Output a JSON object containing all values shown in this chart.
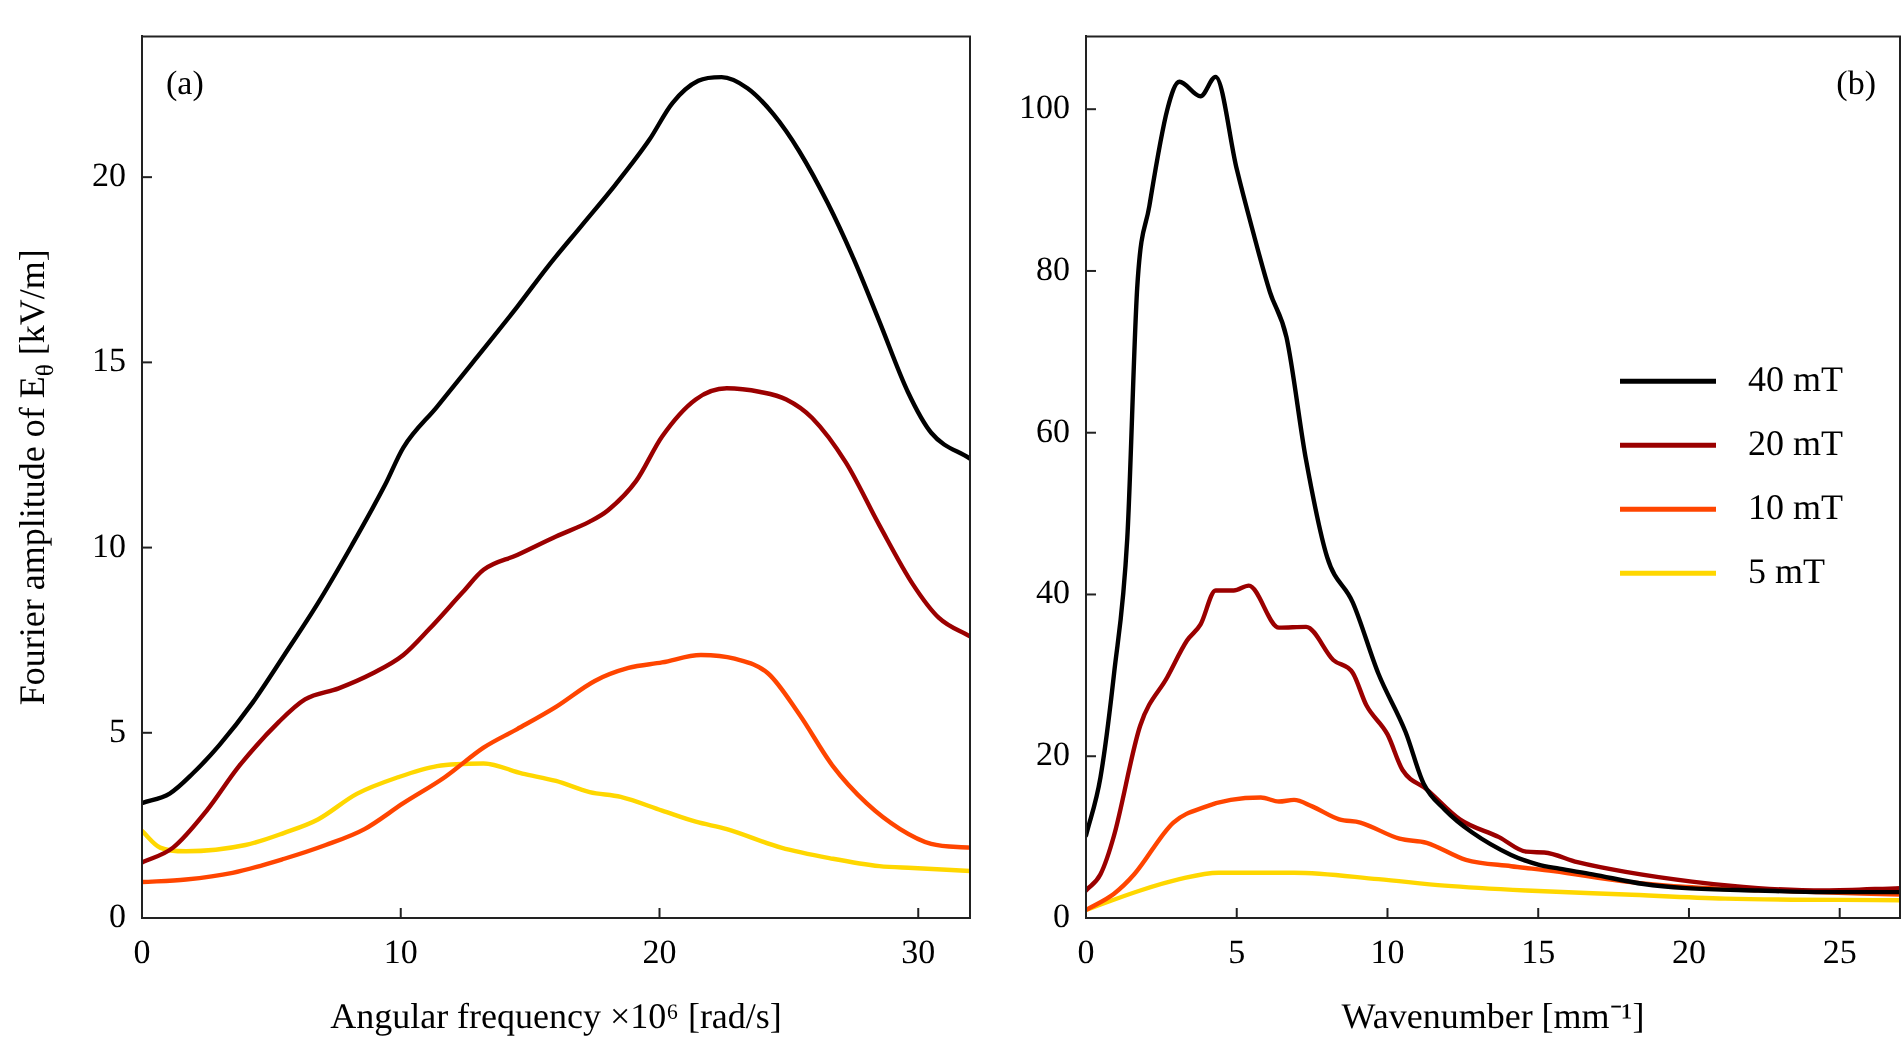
{
  "chart_data": [
    {
      "type": "line",
      "xlabel": "Angular frequency ×10⁶ [rad/s]",
      "ylabel": "Fourier amplitude of E$_{θ}$ [kV/m]",
      "annotations": [
        "(a)"
      ],
      "xlim": [
        0,
        32
      ],
      "ylim": [
        0,
        23.8
      ],
      "xticks": [
        0,
        10,
        20,
        30
      ],
      "yticks": [
        0,
        5,
        10,
        15,
        20
      ],
      "grid": false,
      "line_style": "solid",
      "series": [
        {
          "color": "#000000",
          "x": [
            0,
            1.07,
            1.96,
            2.98,
            4.26,
            5.5,
            6.8,
            8.1,
            9.4,
            10.1,
            11.4,
            12.9,
            14.5,
            15.7,
            17.0,
            18.3,
            19.6,
            20.5,
            21.5,
            22.4,
            23.4,
            24.4,
            25.4,
            26.5,
            27.5,
            28.5,
            29.6,
            30.5,
            32
          ],
          "values": [
            3.1,
            3.36,
            3.9,
            4.66,
            5.8,
            7.1,
            8.5,
            10.05,
            11.7,
            12.7,
            13.8,
            15.1,
            16.5,
            17.6,
            18.7,
            19.8,
            21.0,
            22.0,
            22.6,
            22.7,
            22.4,
            21.7,
            20.7,
            19.3,
            17.8,
            16.1,
            14.2,
            13.1,
            12.4
          ]
        },
        {
          "color": "#9b0000",
          "x": [
            0,
            1.2,
            2.5,
            3.75,
            5.3,
            6.3,
            7.6,
            8.9,
            10.1,
            11.1,
            12.4,
            13.2,
            14.5,
            16.0,
            17.3,
            18.0,
            19.1,
            20.1,
            21.4,
            22.6,
            23.9,
            24.9,
            25.9,
            27.2,
            28.5,
            29.8,
            30.8,
            32
          ],
          "values": [
            1.5,
            1.9,
            2.9,
            4.1,
            5.3,
            5.9,
            6.2,
            6.6,
            7.1,
            7.8,
            8.8,
            9.4,
            9.8,
            10.3,
            10.7,
            11.0,
            11.8,
            13.0,
            14.0,
            14.3,
            14.2,
            14.0,
            13.5,
            12.3,
            10.6,
            9.0,
            8.1,
            7.6
          ]
        },
        {
          "color": "#ff4500",
          "x": [
            0,
            1.7,
            3.5,
            5.5,
            7.1,
            8.6,
            10.1,
            11.7,
            13.2,
            14.5,
            16.0,
            17.5,
            18.8,
            20.1,
            21.6,
            22.9,
            24.2,
            25.4,
            26.7,
            28.0,
            29.3,
            30.5,
            32
          ],
          "values": [
            0.97,
            1.04,
            1.22,
            1.6,
            1.97,
            2.4,
            3.1,
            3.8,
            4.6,
            5.1,
            5.7,
            6.4,
            6.75,
            6.9,
            7.1,
            7.0,
            6.6,
            5.5,
            4.1,
            3.1,
            2.4,
            2.0,
            1.9
          ]
        },
        {
          "color": "#ffd700",
          "x": [
            0,
            0.7,
            1.7,
            4.0,
            5.5,
            6.8,
            8.3,
            9.9,
            11.4,
            13.2,
            14.7,
            16.0,
            17.3,
            18.5,
            20.1,
            21.4,
            22.6,
            24.7,
            26.7,
            28.5,
            29.8,
            32
          ],
          "values": [
            2.35,
            1.9,
            1.8,
            1.97,
            2.3,
            2.66,
            3.35,
            3.8,
            4.1,
            4.17,
            3.9,
            3.7,
            3.4,
            3.27,
            2.9,
            2.6,
            2.4,
            1.9,
            1.6,
            1.4,
            1.35,
            1.27
          ]
        }
      ]
    },
    {
      "type": "line",
      "xlabel": "Wavenumber [mm⁻¹]",
      "annotations": [
        "(b)"
      ],
      "xlim": [
        0,
        27
      ],
      "ylim": [
        0,
        109
      ],
      "xticks": [
        0,
        5,
        10,
        15,
        20,
        25
      ],
      "yticks": [
        0,
        20,
        40,
        60,
        80,
        100
      ],
      "grid": false,
      "line_style": "solid",
      "legend": "right",
      "series": [
        {
          "name": "40 mT",
          "color": "#000000",
          "x": [
            0,
            0.48,
            0.93,
            1.37,
            1.7,
            2.1,
            2.7,
            3.1,
            3.8,
            4.3,
            5.0,
            5.5,
            6.1,
            6.65,
            7.3,
            8.0,
            8.85,
            9.7,
            10.6,
            11.2,
            11.9,
            12.8,
            14.1,
            15.0,
            15.7,
            16.8,
            18.5,
            19.9,
            22.3,
            24.5,
            27
          ],
          "values": [
            10.2,
            17.4,
            30.2,
            47,
            78,
            88,
            100,
            103.4,
            101.6,
            104,
            92.6,
            85.4,
            77.4,
            71.8,
            56.6,
            44.6,
            39,
            30.2,
            23,
            16.6,
            13.4,
            10.6,
            7.8,
            6.6,
            6.1,
            5.4,
            4.2,
            3.7,
            3.4,
            3.2,
            3.2
          ]
        },
        {
          "name": "20 mT",
          "color": "#9b0000",
          "x": [
            0,
            0.48,
            0.93,
            1.8,
            2.7,
            3.35,
            3.8,
            4.3,
            4.9,
            5.4,
            6.4,
            7.3,
            8.2,
            8.85,
            9.3,
            10.0,
            10.5,
            11.3,
            12.4,
            13.7,
            14.6,
            15.2,
            16.3,
            17.9,
            20.1,
            22.3,
            24.5,
            27
          ],
          "values": [
            3.4,
            5.4,
            10.2,
            23.8,
            29.8,
            34.3,
            36.3,
            40.5,
            40.5,
            41.1,
            35.9,
            36.0,
            31.9,
            30.3,
            26.3,
            22.7,
            18.3,
            15.9,
            12.2,
            10.0,
            8.2,
            8.1,
            6.9,
            5.7,
            4.5,
            3.7,
            3.4,
            3.7
          ]
        },
        {
          "name": "10 mT",
          "color": "#ff4500",
          "x": [
            0,
            0.93,
            1.6,
            2.9,
            4.0,
            4.8,
            5.8,
            6.4,
            6.9,
            7.5,
            8.4,
            9.1,
            10.4,
            11.3,
            12.6,
            14.1,
            15.5,
            17.9,
            20.1,
            23.4,
            27
          ],
          "values": [
            1.0,
            3.0,
            5.4,
            11.8,
            13.8,
            14.6,
            14.9,
            14.4,
            14.6,
            13.8,
            12.2,
            11.8,
            9.8,
            9.3,
            7.2,
            6.4,
            5.8,
            4.5,
            3.8,
            3.3,
            2.9
          ]
        },
        {
          "name": "5 mT",
          "color": "#ffd700",
          "x": [
            0,
            1.8,
            3.1,
            4.4,
            6.9,
            9.7,
            11.9,
            14.6,
            17.9,
            21.2,
            27
          ],
          "values": [
            1.0,
            3.4,
            4.8,
            5.6,
            5.6,
            4.8,
            4.0,
            3.4,
            2.9,
            2.4,
            2.2
          ]
        }
      ]
    }
  ]
}
